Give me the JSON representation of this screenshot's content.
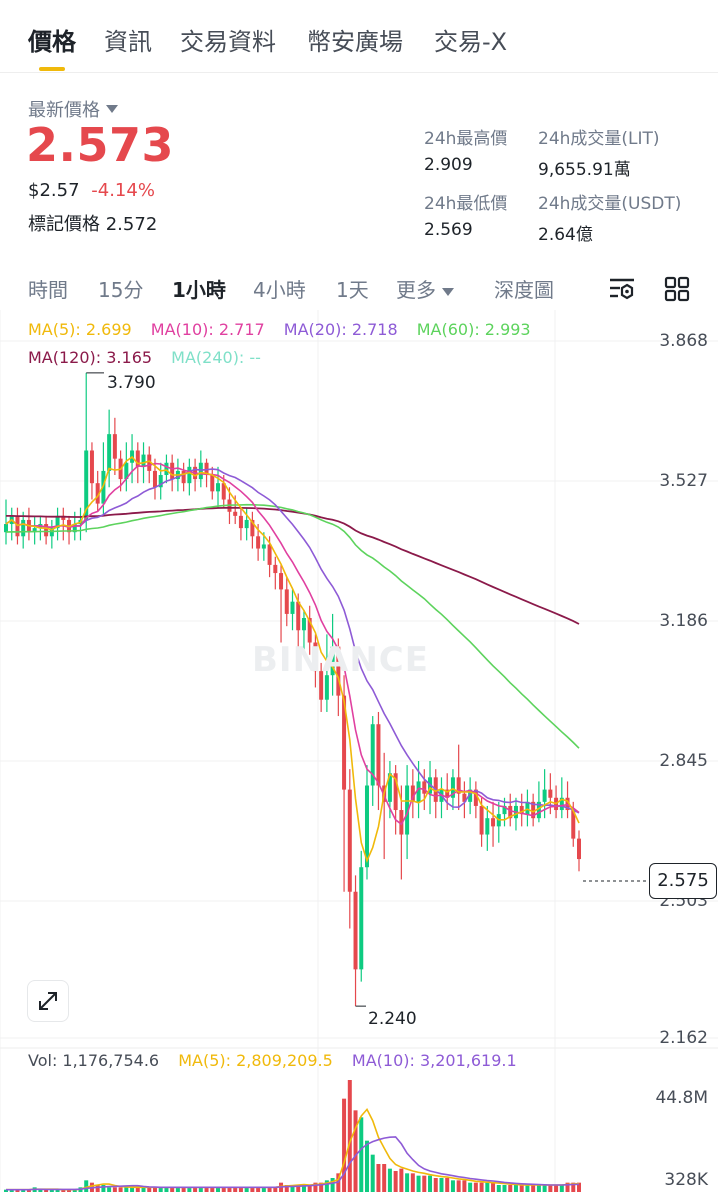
{
  "tabs": {
    "items": [
      {
        "label": "價格",
        "active": true
      },
      {
        "label": "資訊",
        "active": false
      },
      {
        "label": "交易資料",
        "active": false
      },
      {
        "label": "幣安廣場",
        "active": false
      },
      {
        "label": "交易-X",
        "active": false
      }
    ]
  },
  "ticker": {
    "latest_label": "最新價格",
    "price": "2.573",
    "usd_price": "$2.57",
    "change_pct": "-4.14%",
    "mark_label": "標記價格",
    "mark_price": "2.572",
    "high_label": "24h最高價",
    "high_value": "2.909",
    "low_label": "24h最低價",
    "low_value": "2.569",
    "vol_lit_label": "24h成交量(LIT)",
    "vol_lit_value": "9,655.91萬",
    "vol_usdt_label": "24h成交量(USDT)",
    "vol_usdt_value": "2.64億",
    "up_color": "#0ecb81",
    "down_color": "#e5484d"
  },
  "intervals": {
    "items": [
      "時間",
      "15分",
      "1小時",
      "4小時",
      "1天",
      "更多",
      "深度圖"
    ],
    "active": "1小時",
    "settings_icon": "chart-settings-icon",
    "layout_icon": "grid-layout-icon"
  },
  "indicators": {
    "ma5": {
      "label": "MA(5): 2.699",
      "color": "#f0b90b"
    },
    "ma10": {
      "label": "MA(10): 2.717",
      "color": "#e040a0"
    },
    "ma20": {
      "label": "MA(20): 2.718",
      "color": "#8e5bd6"
    },
    "ma60": {
      "label": "MA(60): 2.993",
      "color": "#5dd35d"
    },
    "ma120": {
      "label": "MA(120): 3.165",
      "color": "#8b1a4a"
    },
    "ma240": {
      "label": "MA(240): --",
      "color": "#7fe0c8"
    }
  },
  "price_axis": [
    "3.868",
    "3.527",
    "3.186",
    "2.845",
    "2.503",
    "2.162"
  ],
  "chart": {
    "high_marker": "3.790",
    "low_marker": "2.240",
    "last_price": "2.575",
    "watermark": "BINANCE"
  },
  "volume": {
    "vol_label": "Vol: 1,176,754.6",
    "ma5_label": "MA(5): 2,809,209.5",
    "ma10_label": "MA(10): 3,201,619.1",
    "axis_top": "44.8M",
    "axis_bottom": "328K"
  },
  "chart_data": {
    "type": "candlestick",
    "interval": "1小時",
    "ylim": [
      2.162,
      3.868
    ],
    "candles": [
      [
        3.4,
        3.42,
        3.37,
        3.48
      ],
      [
        3.42,
        3.44,
        3.38,
        3.46
      ],
      [
        3.44,
        3.39,
        3.37,
        3.46
      ],
      [
        3.39,
        3.43,
        3.36,
        3.45
      ],
      [
        3.43,
        3.4,
        3.38,
        3.46
      ],
      [
        3.4,
        3.41,
        3.37,
        3.44
      ],
      [
        3.41,
        3.42,
        3.38,
        3.44
      ],
      [
        3.42,
        3.39,
        3.37,
        3.44
      ],
      [
        3.39,
        3.41,
        3.36,
        3.43
      ],
      [
        3.41,
        3.44,
        3.38,
        3.46
      ],
      [
        3.44,
        3.43,
        3.38,
        3.46
      ],
      [
        3.43,
        3.4,
        3.37,
        3.44
      ],
      [
        3.4,
        3.42,
        3.38,
        3.45
      ],
      [
        3.42,
        3.43,
        3.38,
        3.46
      ],
      [
        3.43,
        3.6,
        3.4,
        3.79
      ],
      [
        3.6,
        3.52,
        3.48,
        3.62
      ],
      [
        3.52,
        3.47,
        3.45,
        3.55
      ],
      [
        3.47,
        3.55,
        3.44,
        3.62
      ],
      [
        3.55,
        3.64,
        3.51,
        3.7
      ],
      [
        3.64,
        3.58,
        3.54,
        3.68
      ],
      [
        3.58,
        3.53,
        3.5,
        3.6
      ],
      [
        3.53,
        3.57,
        3.5,
        3.62
      ],
      [
        3.57,
        3.6,
        3.52,
        3.64
      ],
      [
        3.6,
        3.56,
        3.52,
        3.62
      ],
      [
        3.56,
        3.59,
        3.52,
        3.62
      ],
      [
        3.59,
        3.55,
        3.52,
        3.61
      ],
      [
        3.55,
        3.51,
        3.48,
        3.58
      ],
      [
        3.51,
        3.54,
        3.48,
        3.57
      ],
      [
        3.54,
        3.57,
        3.52,
        3.59
      ],
      [
        3.57,
        3.53,
        3.5,
        3.59
      ],
      [
        3.53,
        3.55,
        3.5,
        3.58
      ],
      [
        3.55,
        3.52,
        3.5,
        3.57
      ],
      [
        3.52,
        3.56,
        3.49,
        3.58
      ],
      [
        3.56,
        3.53,
        3.5,
        3.58
      ],
      [
        3.53,
        3.57,
        3.51,
        3.6
      ],
      [
        3.57,
        3.54,
        3.51,
        3.58
      ],
      [
        3.54,
        3.5,
        3.48,
        3.56
      ],
      [
        3.5,
        3.52,
        3.46,
        3.56
      ],
      [
        3.52,
        3.48,
        3.46,
        3.54
      ],
      [
        3.48,
        3.45,
        3.42,
        3.51
      ],
      [
        3.45,
        3.44,
        3.42,
        3.49
      ],
      [
        3.44,
        3.41,
        3.38,
        3.46
      ],
      [
        3.41,
        3.43,
        3.38,
        3.46
      ],
      [
        3.43,
        3.39,
        3.36,
        3.45
      ],
      [
        3.39,
        3.36,
        3.33,
        3.42
      ],
      [
        3.36,
        3.37,
        3.33,
        3.4
      ],
      [
        3.37,
        3.32,
        3.29,
        3.39
      ],
      [
        3.32,
        3.3,
        3.26,
        3.34
      ],
      [
        3.3,
        3.26,
        3.13,
        3.32
      ],
      [
        3.26,
        3.2,
        3.17,
        3.29
      ],
      [
        3.2,
        3.23,
        3.16,
        3.26
      ],
      [
        3.23,
        3.16,
        3.12,
        3.25
      ],
      [
        3.16,
        3.19,
        3.11,
        3.21
      ],
      [
        3.19,
        3.13,
        3.1,
        3.22
      ],
      [
        3.13,
        3.06,
        3.02,
        3.15
      ],
      [
        3.06,
        2.99,
        2.96,
        3.08
      ],
      [
        2.99,
        3.05,
        2.96,
        3.15
      ],
      [
        3.05,
        3.12,
        3.0,
        3.2
      ],
      [
        3.12,
        3.0,
        2.95,
        3.14
      ],
      [
        3.0,
        2.77,
        2.52,
        3.05
      ],
      [
        2.77,
        2.52,
        2.43,
        2.82
      ],
      [
        2.52,
        2.33,
        2.24,
        2.56
      ],
      [
        2.33,
        2.58,
        2.3,
        2.62
      ],
      [
        2.58,
        2.78,
        2.55,
        2.83
      ],
      [
        2.78,
        2.93,
        2.73,
        2.95
      ],
      [
        2.93,
        2.78,
        2.72,
        2.96
      ],
      [
        2.78,
        2.74,
        2.6,
        2.86
      ],
      [
        2.74,
        2.81,
        2.7,
        2.84
      ],
      [
        2.81,
        2.72,
        2.66,
        2.83
      ],
      [
        2.72,
        2.66,
        2.55,
        2.78
      ],
      [
        2.66,
        2.78,
        2.6,
        2.83
      ],
      [
        2.78,
        2.74,
        2.7,
        2.82
      ],
      [
        2.74,
        2.79,
        2.7,
        2.84
      ],
      [
        2.79,
        2.76,
        2.72,
        2.82
      ],
      [
        2.76,
        2.8,
        2.71,
        2.84
      ],
      [
        2.8,
        2.74,
        2.7,
        2.82
      ],
      [
        2.74,
        2.77,
        2.7,
        2.8
      ],
      [
        2.77,
        2.75,
        2.72,
        2.81
      ],
      [
        2.75,
        2.8,
        2.72,
        2.82
      ],
      [
        2.8,
        2.76,
        2.72,
        2.88
      ],
      [
        2.76,
        2.74,
        2.7,
        2.79
      ],
      [
        2.74,
        2.77,
        2.71,
        2.8
      ],
      [
        2.77,
        2.73,
        2.7,
        2.79
      ],
      [
        2.73,
        2.66,
        2.63,
        2.75
      ],
      [
        2.66,
        2.7,
        2.62,
        2.73
      ],
      [
        2.7,
        2.68,
        2.63,
        2.74
      ],
      [
        2.68,
        2.71,
        2.64,
        2.74
      ],
      [
        2.71,
        2.73,
        2.68,
        2.75
      ],
      [
        2.73,
        2.7,
        2.68,
        2.76
      ],
      [
        2.7,
        2.73,
        2.67,
        2.75
      ],
      [
        2.73,
        2.71,
        2.68,
        2.76
      ],
      [
        2.71,
        2.74,
        2.68,
        2.77
      ],
      [
        2.74,
        2.7,
        2.68,
        2.76
      ],
      [
        2.7,
        2.74,
        2.69,
        2.79
      ],
      [
        2.74,
        2.77,
        2.7,
        2.82
      ],
      [
        2.77,
        2.75,
        2.71,
        2.81
      ],
      [
        2.75,
        2.72,
        2.7,
        2.78
      ],
      [
        2.72,
        2.75,
        2.7,
        2.8
      ],
      [
        2.75,
        2.72,
        2.7,
        2.79
      ],
      [
        2.72,
        2.65,
        2.63,
        2.74
      ],
      [
        2.65,
        2.6,
        2.57,
        2.67
      ]
    ],
    "volumes": [
      1,
      1,
      1,
      1,
      1,
      2,
      1,
      1,
      1,
      1,
      1,
      1,
      1,
      2,
      5,
      4,
      3,
      3,
      2,
      2,
      2,
      2,
      2,
      2,
      2,
      2,
      2,
      2,
      2,
      2,
      2,
      2,
      2,
      2,
      2,
      2,
      2,
      2,
      2,
      2,
      2,
      2,
      2,
      2,
      2,
      2,
      2,
      2,
      4,
      3,
      3,
      3,
      3,
      3,
      4,
      4,
      5,
      6,
      8,
      40,
      48,
      35,
      32,
      22,
      16,
      12,
      12,
      10,
      9,
      10,
      8,
      8,
      7,
      7,
      7,
      6,
      6,
      6,
      5,
      5,
      5,
      4,
      4,
      4,
      4,
      4,
      3,
      3,
      3,
      3,
      3,
      3,
      3,
      3,
      3,
      3,
      3,
      3,
      4,
      4,
      4
    ]
  }
}
